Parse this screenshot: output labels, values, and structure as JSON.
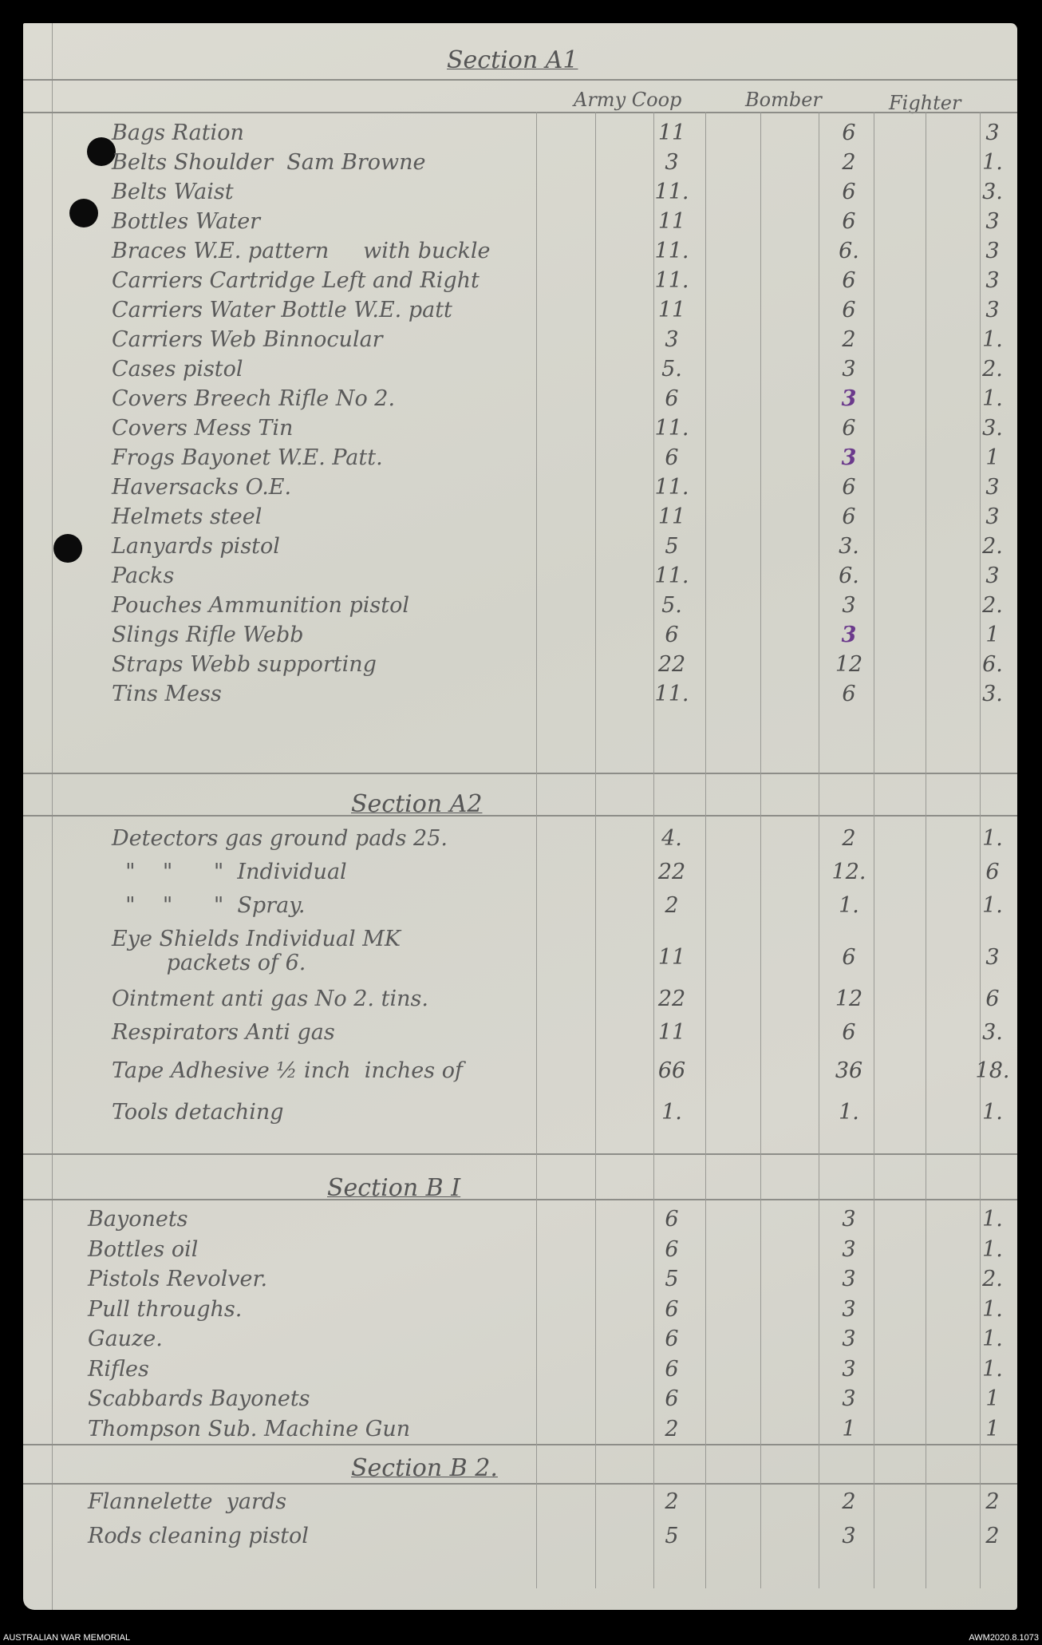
{
  "column_headers": {
    "army": "Army Coop",
    "bomber": "Bomber",
    "fighter": "Fighter"
  },
  "ink_colors": {
    "pencil": "#4e4e4e",
    "purple": "#6b3a8c"
  },
  "sections": [
    {
      "title": "Section A1",
      "rows": [
        {
          "item": "Bags Ration",
          "army": "11",
          "bomber": "6",
          "fighter": "3"
        },
        {
          "item": "Belts Shoulder  Sam Browne",
          "army": "3",
          "bomber": "2",
          "fighter": "1."
        },
        {
          "item": "Belts Waist",
          "army": "11.",
          "bomber": "6",
          "fighter": "3."
        },
        {
          "item": "Bottles Water",
          "army": "11",
          "bomber": "6",
          "fighter": "3"
        },
        {
          "item": "Braces W.E. pattern     with buckle",
          "army": "11.",
          "bomber": "6.",
          "fighter": "3"
        },
        {
          "item": "Carriers Cartridge Left and Right",
          "army": "11.",
          "bomber": "6",
          "fighter": "3"
        },
        {
          "item": "Carriers Water Bottle W.E. patt",
          "army": "11",
          "bomber": "6",
          "fighter": "3"
        },
        {
          "item": "Carriers Web Binnocular",
          "army": "3",
          "bomber": "2",
          "fighter": "1."
        },
        {
          "item": "Cases pistol",
          "army": "5.",
          "bomber": "3",
          "fighter": "2."
        },
        {
          "item": "Covers Breech Rifle No 2.",
          "army": "6",
          "bomber": "3",
          "fighter": "1.",
          "bomber_ink": "purple"
        },
        {
          "item": "Covers Mess Tin",
          "army": "11.",
          "bomber": "6",
          "fighter": "3."
        },
        {
          "item": "Frogs Bayonet W.E. Patt.",
          "army": "6",
          "bomber": "3",
          "fighter": "1",
          "bomber_ink": "purple"
        },
        {
          "item": "Haversacks O.E.",
          "army": "11.",
          "bomber": "6",
          "fighter": "3"
        },
        {
          "item": "Helmets steel",
          "army": "11",
          "bomber": "6",
          "fighter": "3"
        },
        {
          "item": "Lanyards pistol",
          "army": "5",
          "bomber": "3.",
          "fighter": "2."
        },
        {
          "item": "Packs",
          "army": "11.",
          "bomber": "6.",
          "fighter": "3"
        },
        {
          "item": "Pouches Ammunition pistol",
          "army": "5.",
          "bomber": "3",
          "fighter": "2."
        },
        {
          "item": "Slings Rifle Webb",
          "army": "6",
          "bomber": "3",
          "fighter": "1",
          "bomber_ink": "purple"
        },
        {
          "item": "Straps Webb supporting",
          "army": "22",
          "bomber": "12",
          "fighter": "6."
        },
        {
          "item": "Tins Mess",
          "army": "11.",
          "bomber": "6",
          "fighter": "3."
        }
      ]
    },
    {
      "title": "Section A2",
      "rows": [
        {
          "item": "Detectors gas ground pads 25.",
          "army": "4.",
          "bomber": "2",
          "fighter": "1."
        },
        {
          "item": "  \"    \"      \"  Individual",
          "army": "22",
          "bomber": "12.",
          "fighter": "6"
        },
        {
          "item": "  \"    \"      \"  Spray.",
          "army": "2",
          "bomber": "1.",
          "fighter": "1."
        },
        {
          "item": "Eye Shields Individual MK\n        packets of 6.",
          "army": "11",
          "bomber": "6",
          "fighter": "3"
        },
        {
          "item": "Ointment anti gas No 2. tins.",
          "army": "22",
          "bomber": "12",
          "fighter": "6"
        },
        {
          "item": "Respirators Anti gas",
          "army": "11",
          "bomber": "6",
          "fighter": "3."
        },
        {
          "item": "Tape Adhesive ½ inch  inches of",
          "army": "66",
          "bomber": "36",
          "fighter": "18."
        },
        {
          "item": "Tools detaching",
          "army": "1.",
          "bomber": "1.",
          "fighter": "1."
        }
      ]
    },
    {
      "title": "Section B I",
      "rows": [
        {
          "item": "Bayonets",
          "army": "6",
          "bomber": "3",
          "fighter": "1."
        },
        {
          "item": "Bottles oil",
          "army": "6",
          "bomber": "3",
          "fighter": "1."
        },
        {
          "item": "Pistols Revolver.",
          "army": "5",
          "bomber": "3",
          "fighter": "2."
        },
        {
          "item": "Pull throughs.",
          "army": "6",
          "bomber": "3",
          "fighter": "1."
        },
        {
          "item": "Gauze.",
          "army": "6",
          "bomber": "3",
          "fighter": "1."
        },
        {
          "item": "Rifles",
          "army": "6",
          "bomber": "3",
          "fighter": "1."
        },
        {
          "item": "Scabbards Bayonets",
          "army": "6",
          "bomber": "3",
          "fighter": "1"
        },
        {
          "item": "Thompson Sub. Machine Gun",
          "army": "2",
          "bomber": "1",
          "fighter": "1"
        }
      ]
    },
    {
      "title": "Section B 2.",
      "rows": [
        {
          "item": "Flannelette  yards",
          "army": "2",
          "bomber": "2",
          "fighter": "2"
        },
        {
          "item": "Rods cleaning pistol",
          "army": "5",
          "bomber": "3",
          "fighter": "2"
        }
      ]
    }
  ],
  "footer": {
    "left": "AUSTRALIAN WAR MEMORIAL",
    "right": "AWM2020.8.1073"
  }
}
